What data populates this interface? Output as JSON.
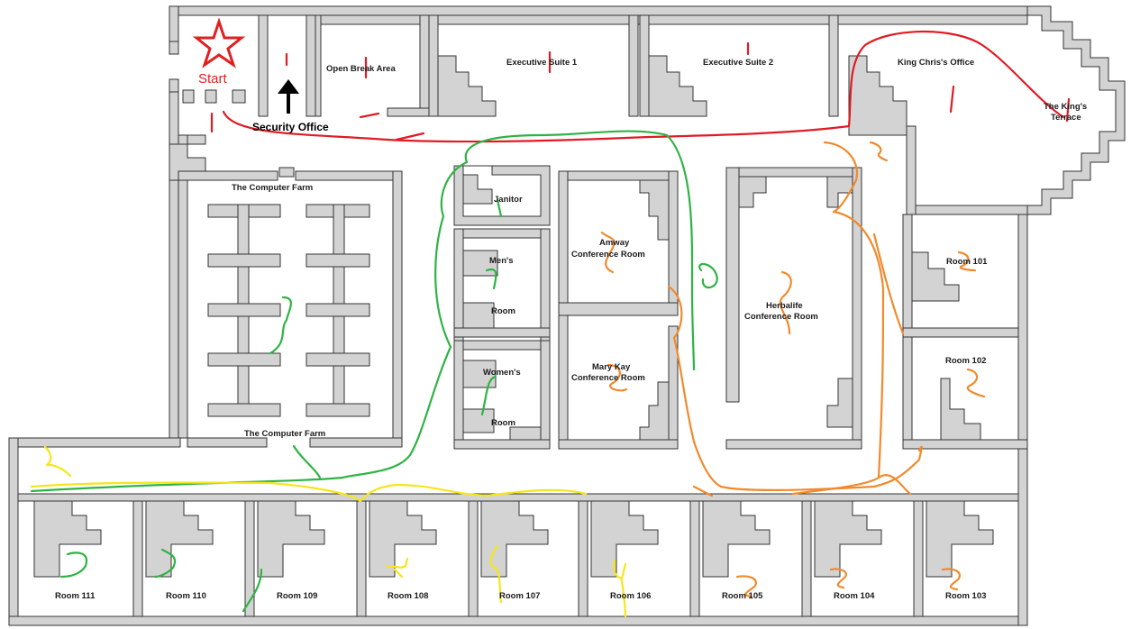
{
  "start_label": "Start",
  "rooms": {
    "open_break_area": "Open Break Area",
    "executive_suite_1": "Executive Suite 1",
    "executive_suite_2": "Executive Suite 2",
    "king_chris_office": "King Chris's Office",
    "kings_terrace_line1": "The King's",
    "kings_terrace_line2": "Terrace",
    "security_office": "Security Office",
    "computer_farm_top": "The Computer Farm",
    "computer_farm_bottom": "The Computer Farm",
    "janitor": "Janitor",
    "mens": "Men's",
    "mens_room": "Room",
    "womens": "Women's",
    "womens_room": "Room",
    "amway_line1": "Amway",
    "amway_line2": "Conference Room",
    "mary_kay_line1": "Mary Kay",
    "mary_kay_line2": "Conference Room",
    "herbalife_line1": "Herbalife",
    "herbalife_line2": "Conference Room",
    "room_101": "Room 101",
    "room_102": "Room 102",
    "room_103": "Room 103",
    "room_104": "Room 104",
    "room_105": "Room 105",
    "room_106": "Room 106",
    "room_107": "Room 107",
    "room_108": "Room 108",
    "room_109": "Room 109",
    "room_110": "Room 110",
    "room_111": "Room 111"
  },
  "route_colors": {
    "red": "#e01b24",
    "green": "#2fb344",
    "orange": "#f08a2c",
    "yellow": "#f5e61b",
    "wall": "#d3d3d3",
    "wall_edge": "#333333"
  }
}
